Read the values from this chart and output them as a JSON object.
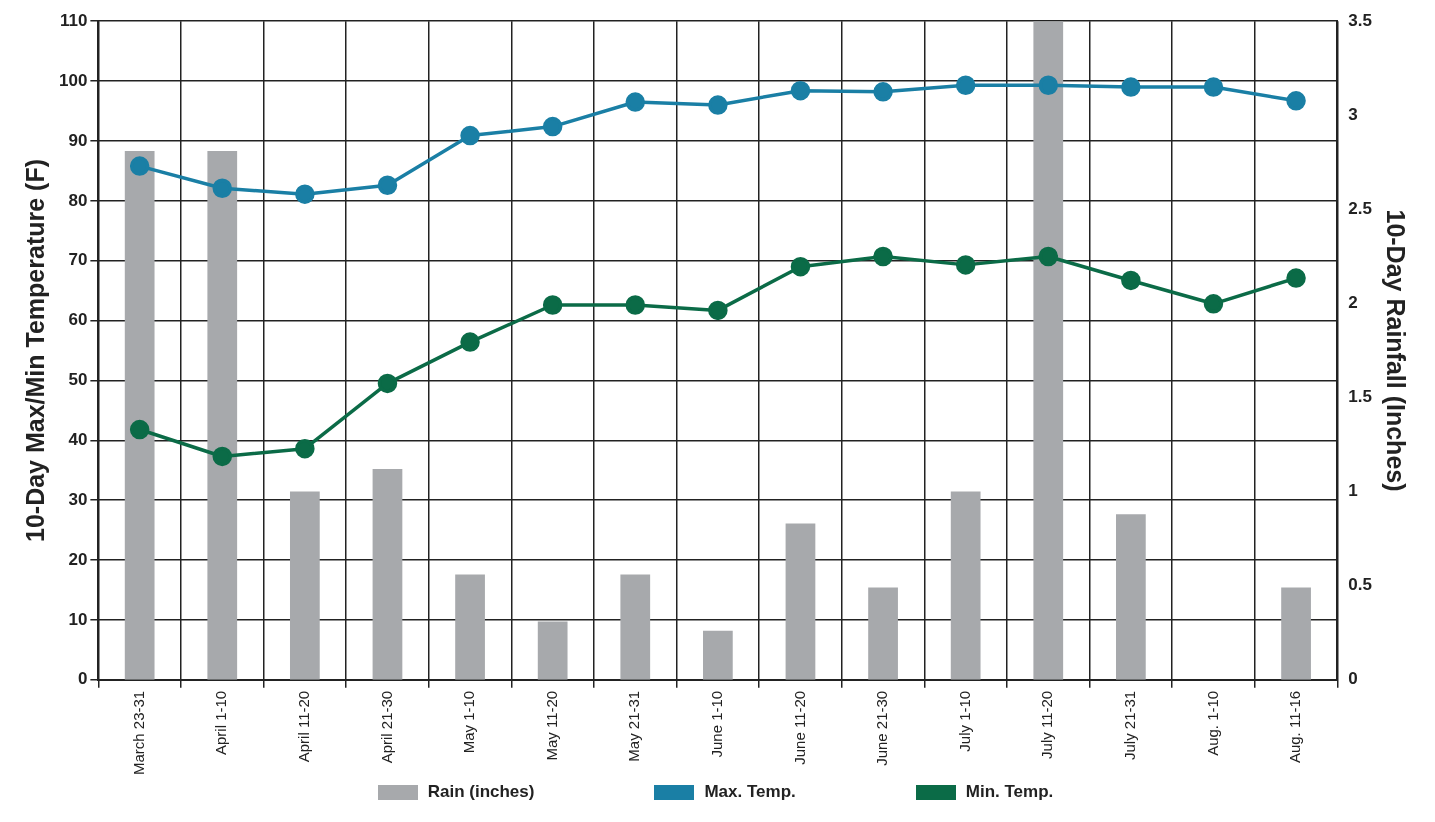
{
  "chart_data": {
    "type": "bar",
    "ylabel": "10-Day Max/Min Temperature (F)",
    "y2label": "10-Day Rainfall (Inches)",
    "categories": [
      "March 23-31",
      "April 1-10",
      "April 11-20",
      "April 21-30",
      "May 1-10",
      "May 11-20",
      "May 21-31",
      "June 1-10",
      "June 11-20",
      "June 21-30",
      "July 1-10",
      "July 11-20",
      "July 21-31",
      "Aug. 1-10",
      "Aug. 11-16"
    ],
    "series": [
      {
        "name": "Rain (inches)",
        "axis": "y2",
        "color": "#a7a9ac",
        "values": [
          2.81,
          2.81,
          1.0,
          1.12,
          0.56,
          0.31,
          0.56,
          0.26,
          0.83,
          0.49,
          1.0,
          3.5,
          0.88,
          0,
          0.49
        ]
      },
      {
        "name": "Max. Temp.",
        "type": "line",
        "axis": "y",
        "color": "#1a7fa5",
        "values": [
          85.8,
          82.1,
          81.1,
          82.6,
          90.9,
          92.4,
          96.5,
          96.0,
          98.4,
          98.2,
          99.3,
          99.3,
          99.0,
          99.0,
          96.7
        ]
      },
      {
        "name": "Min. Temp.",
        "type": "line",
        "axis": "y",
        "color": "#0b6b47",
        "values": [
          41.8,
          37.3,
          38.6,
          49.5,
          56.4,
          62.6,
          62.6,
          61.7,
          69.0,
          70.7,
          69.3,
          70.7,
          66.7,
          62.8,
          67.1
        ]
      }
    ],
    "ylim": [
      0,
      110
    ],
    "yticks": [
      0,
      10,
      20,
      30,
      40,
      50,
      60,
      70,
      80,
      90,
      100,
      110
    ],
    "y2lim": [
      0,
      3.5
    ],
    "y2ticks": [
      0,
      0.5,
      1,
      1.5,
      2,
      2.5,
      3,
      3.5
    ],
    "grid": true,
    "legend": "bottom",
    "marker": "circle",
    "line_style": "solid"
  }
}
